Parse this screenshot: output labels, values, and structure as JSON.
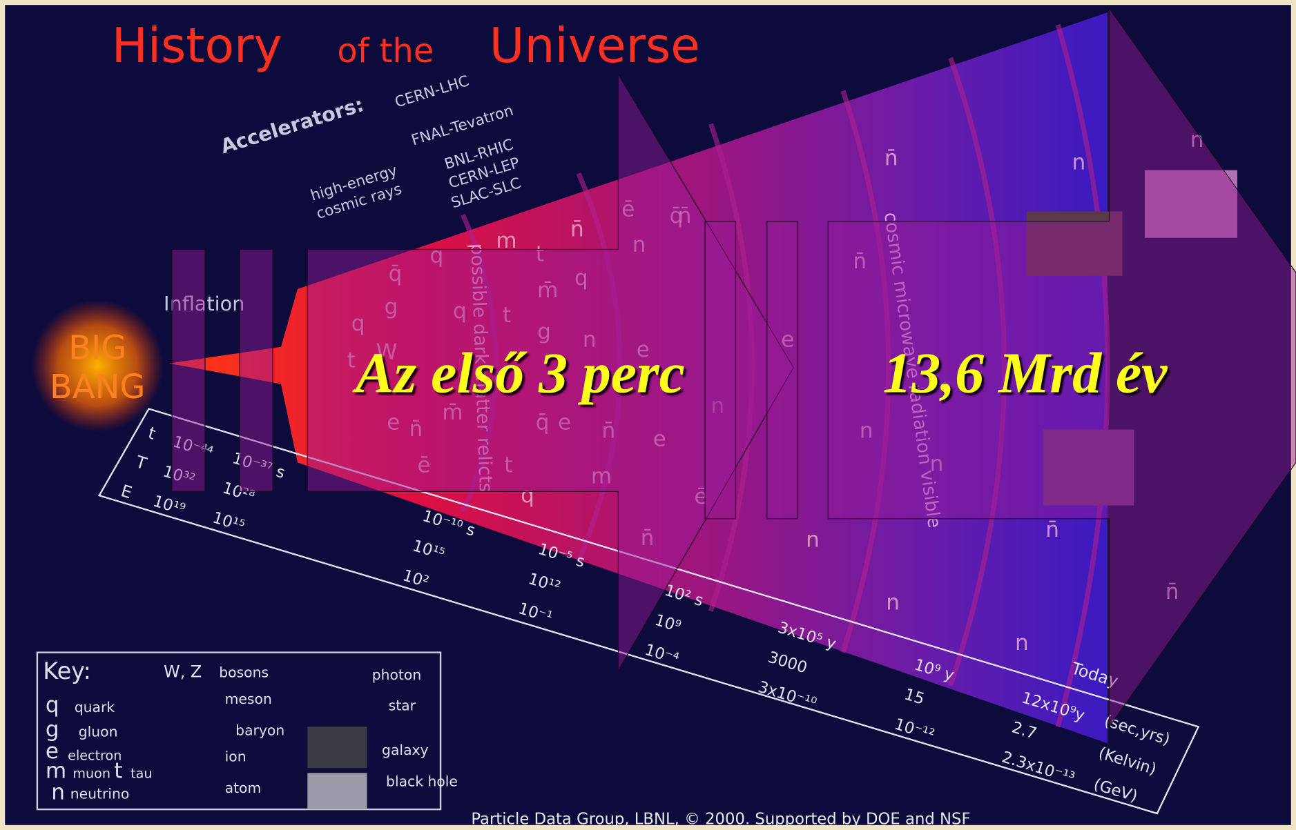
{
  "title": [
    "History",
    "of the",
    "Universe"
  ],
  "overlays": [
    "Az első 3 perc",
    "13,6 Mrd év"
  ],
  "big_bang": [
    "BIG",
    "BANG"
  ],
  "inflation": "Inflation",
  "accelerators": {
    "label": "Accelerators:",
    "items": [
      "CERN-LHC",
      "FNAL-Tevatron",
      "BNL-RHIC",
      "CERN-LEP",
      "SLAC-SLC",
      "high-energy",
      "cosmic rays"
    ]
  },
  "band_labels": [
    "possible dark matter relicts",
    "cosmic microwave radiation visible"
  ],
  "timeline": {
    "row_labels": [
      "t",
      "T",
      "E"
    ],
    "columns": [
      [
        "10⁻⁴⁴",
        "10³²",
        "10¹⁹"
      ],
      [
        "10⁻³⁷ s",
        "10²⁸",
        "10¹⁵"
      ],
      [
        "10⁻¹⁰ s",
        "10¹⁵",
        "10²"
      ],
      [
        "10⁻⁵ s",
        "10¹²",
        "10⁻¹"
      ],
      [
        "10² s",
        "10⁹",
        "10⁻⁴"
      ],
      [
        "3x10⁵ y",
        "3000",
        "3x10⁻¹⁰"
      ],
      [
        "10⁹ y",
        "15",
        "10⁻¹²"
      ],
      [
        "12x10⁹y",
        "2.7",
        "2.3x10⁻¹³"
      ]
    ],
    "today": "Today",
    "units": [
      "(sec,yrs)",
      "(Kelvin)",
      "(GeV)"
    ]
  },
  "key": {
    "title": "Key:",
    "items": [
      {
        "symbol": "q",
        "label": "quark"
      },
      {
        "symbol": "g",
        "label": "gluon"
      },
      {
        "symbol": "e",
        "label": "electron"
      },
      {
        "symbol": "m",
        "label": "muon"
      },
      {
        "symbol": "t",
        "label": "tau"
      },
      {
        "symbol": "n",
        "label": "neutrino"
      },
      {
        "symbol": "W, Z",
        "label": "bosons"
      },
      {
        "symbol": "",
        "label": "meson"
      },
      {
        "symbol": "",
        "label": "baryon"
      },
      {
        "symbol": "",
        "label": "ion"
      },
      {
        "symbol": "",
        "label": "atom"
      },
      {
        "symbol": "",
        "label": "photon"
      },
      {
        "symbol": "",
        "label": "star"
      },
      {
        "symbol": "",
        "label": "galaxy"
      },
      {
        "symbol": "",
        "label": "black hole"
      }
    ]
  },
  "particles": [
    "q",
    "m",
    "t",
    "n̄",
    "q̄",
    "ē",
    "n",
    "q̄",
    "g",
    "q",
    "m̄",
    "q",
    "t",
    "q",
    "W",
    "g",
    "n",
    "e",
    "t",
    "e",
    "n̄",
    "m̄",
    "q̄",
    "e",
    "n̄",
    "e",
    "ē",
    "t",
    "q",
    "m",
    "n",
    "n̄",
    "ē",
    "n̄",
    "n",
    "e",
    "n̄",
    "n",
    "n",
    "n̄",
    "n",
    "n̄",
    "n",
    "n",
    "n̄",
    "n"
  ],
  "credit": "Particle Data Group, LBNL, © 2000.    Supported by DOE and NSF"
}
